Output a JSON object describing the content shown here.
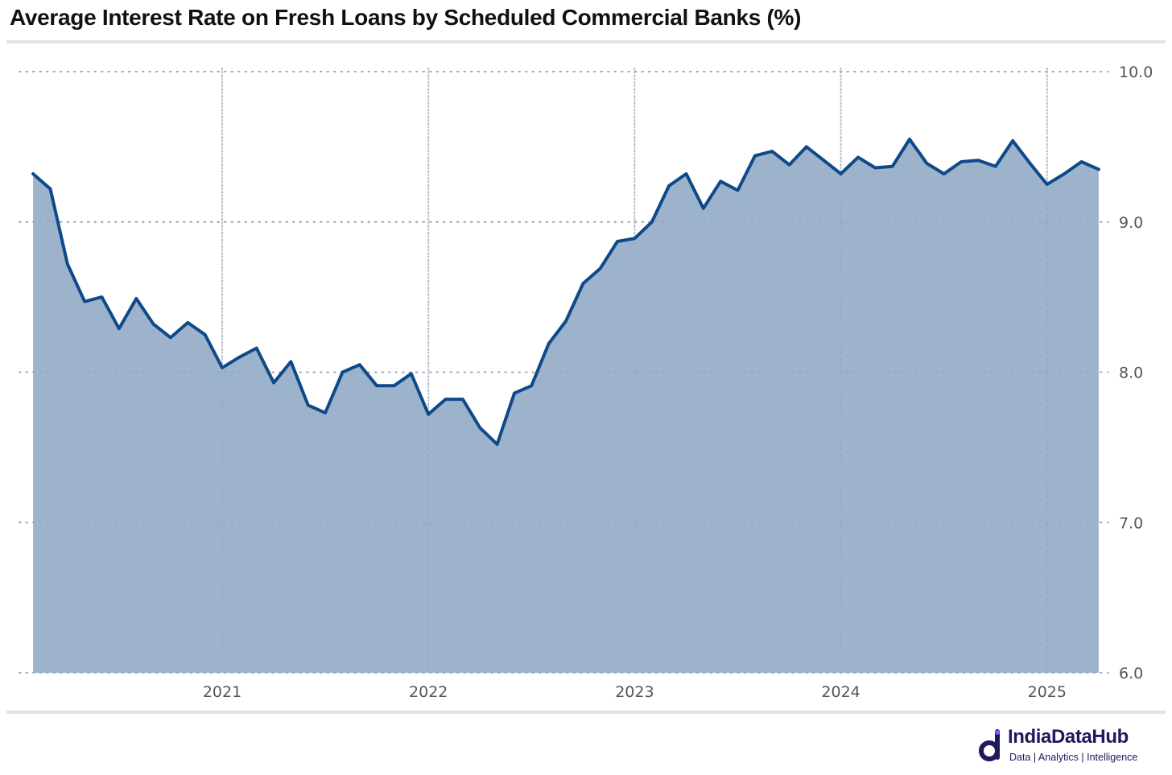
{
  "chart_data": {
    "type": "area",
    "title": "Average Interest Rate on Fresh Loans by Scheduled Commercial Banks (%)",
    "xlabel": "",
    "ylabel": "",
    "ylim": [
      6.0,
      10.0
    ],
    "y_ticks": [
      "6.0",
      "7.0",
      "8.0",
      "9.0",
      "10.0"
    ],
    "x_ticks": [
      {
        "label": "2021",
        "date": "2021-01"
      },
      {
        "label": "2022",
        "date": "2022-01"
      },
      {
        "label": "2023",
        "date": "2023-01"
      },
      {
        "label": "2024",
        "date": "2024-01"
      },
      {
        "label": "2025",
        "date": "2025-01"
      }
    ],
    "y_axis_position": "right",
    "grid": "dotted",
    "legend": "none",
    "series": [
      {
        "color": "#0e4a8a",
        "fill": "#9db3cc",
        "dates": [
          "2020-02",
          "2020-03",
          "2020-04",
          "2020-05",
          "2020-06",
          "2020-07",
          "2020-08",
          "2020-09",
          "2020-10",
          "2020-11",
          "2020-12",
          "2021-01",
          "2021-02",
          "2021-03",
          "2021-04",
          "2021-05",
          "2021-06",
          "2021-07",
          "2021-08",
          "2021-09",
          "2021-10",
          "2021-11",
          "2021-12",
          "2022-01",
          "2022-02",
          "2022-03",
          "2022-04",
          "2022-05",
          "2022-06",
          "2022-07",
          "2022-08",
          "2022-09",
          "2022-10",
          "2022-11",
          "2022-12",
          "2023-01",
          "2023-02",
          "2023-03",
          "2023-04",
          "2023-05",
          "2023-06",
          "2023-07",
          "2023-08",
          "2023-09",
          "2023-10",
          "2023-11",
          "2023-12",
          "2024-01",
          "2024-02",
          "2024-03",
          "2024-04",
          "2024-05",
          "2024-06",
          "2024-07",
          "2024-08",
          "2024-09",
          "2024-10",
          "2024-11",
          "2024-12",
          "2025-01",
          "2025-02",
          "2025-03",
          "2025-04"
        ],
        "values": [
          9.32,
          9.22,
          8.72,
          8.47,
          8.5,
          8.29,
          8.49,
          8.32,
          8.23,
          8.33,
          8.25,
          8.03,
          8.1,
          8.16,
          7.93,
          8.07,
          7.78,
          7.73,
          8.0,
          8.05,
          7.91,
          7.91,
          7.99,
          7.72,
          7.82,
          7.82,
          7.63,
          7.52,
          7.86,
          7.91,
          8.19,
          8.34,
          8.59,
          8.69,
          8.87,
          8.89,
          9.0,
          9.24,
          9.32,
          9.09,
          9.27,
          9.21,
          9.44,
          9.47,
          9.38,
          9.5,
          9.41,
          9.32,
          9.43,
          9.36,
          9.37,
          9.55,
          9.39,
          9.32,
          9.4,
          9.41,
          9.37,
          9.54,
          9.39,
          9.25,
          9.32,
          9.4,
          9.35
        ]
      }
    ]
  },
  "brand": {
    "name": "IndiaDataHub",
    "tagline": "Data | Analytics | Intelligence",
    "color": "#1d1a5e"
  }
}
